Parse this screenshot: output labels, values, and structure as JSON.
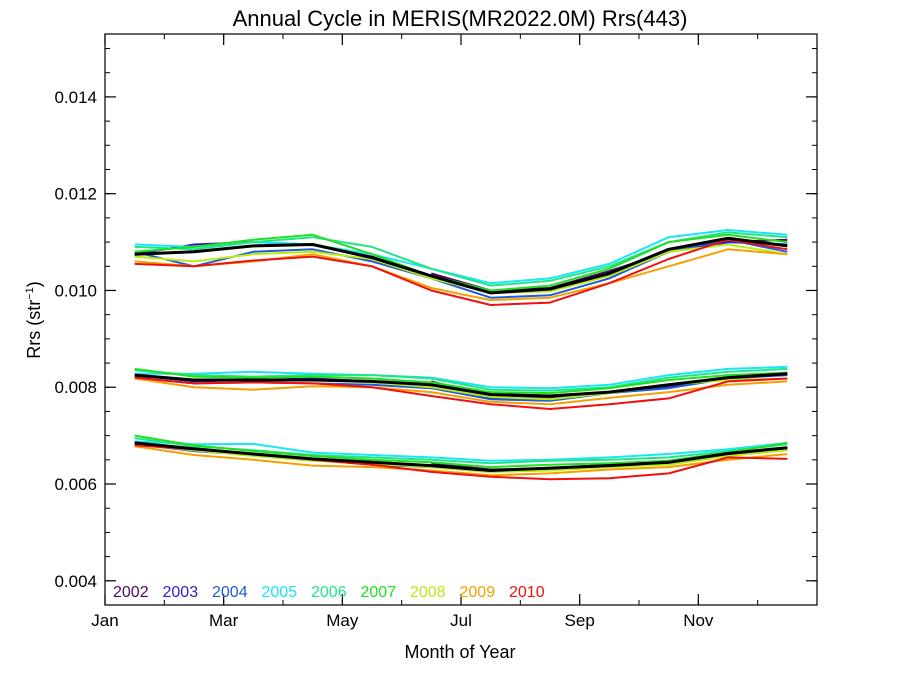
{
  "chart_data": {
    "type": "line",
    "title": "Annual Cycle in MERIS(MR2022.0M) Rrs(443)",
    "xlabel": "Month of Year",
    "ylabel_main": "Rrs (str",
    "ylabel_sup": "−1",
    "ylabel_tail": ")",
    "xlim": [
      1,
      13
    ],
    "ylim": [
      0.0035,
      0.0153
    ],
    "x_ticks": [
      {
        "value": 1,
        "label": "Jan"
      },
      {
        "value": 3,
        "label": "Mar"
      },
      {
        "value": 5,
        "label": "May"
      },
      {
        "value": 7,
        "label": "Jul"
      },
      {
        "value": 9,
        "label": "Sep"
      },
      {
        "value": 11,
        "label": "Nov"
      }
    ],
    "y_ticks": [
      {
        "value": 0.004,
        "label": "0.004"
      },
      {
        "value": 0.006,
        "label": "0.006"
      },
      {
        "value": 0.008,
        "label": "0.008"
      },
      {
        "value": 0.01,
        "label": "0.010"
      },
      {
        "value": 0.012,
        "label": "0.012"
      },
      {
        "value": 0.014,
        "label": "0.014"
      }
    ],
    "grid": false,
    "legend_position": "bottom-left",
    "x": [
      1.5,
      2.5,
      3.5,
      4.5,
      5.5,
      6.5,
      7.5,
      8.5,
      9.5,
      10.5,
      11.5,
      12.5
    ],
    "series": [
      {
        "name": "2002",
        "color": "#4b0a5e",
        "groups": [
          {
            "x0": 6.5,
            "values": [
              0.01035,
              0.01,
              0.01005,
              0.0104,
              0.0108,
              0.011,
              0.01105
            ]
          },
          {
            "x0": 6.5,
            "values": [
              0.00812,
              0.0078,
              0.00778,
              0.0079,
              0.00805,
              0.0082,
              0.0083
            ]
          },
          {
            "x0": 6.5,
            "values": [
              0.00643,
              0.0063,
              0.00633,
              0.0064,
              0.00648,
              0.00665,
              0.00675
            ]
          }
        ]
      },
      {
        "name": "2003",
        "color": "#2e1ec8",
        "groups": [
          {
            "x0": 1.5,
            "values": [
              0.01075,
              0.01095,
              0.011,
              0.01095,
              0.0107,
              0.0103,
              0.00995,
              0.01,
              0.0103,
              0.0108,
              0.011,
              0.01095
            ]
          },
          {
            "x0": 1.5,
            "values": [
              0.00825,
              0.00812,
              0.00815,
              0.00818,
              0.00812,
              0.008,
              0.00778,
              0.00775,
              0.0079,
              0.008,
              0.00818,
              0.00828
            ]
          },
          {
            "x0": 1.5,
            "values": [
              0.00685,
              0.00672,
              0.00662,
              0.00652,
              0.00645,
              0.00638,
              0.00628,
              0.00633,
              0.0064,
              0.00645,
              0.00663,
              0.00675
            ]
          }
        ]
      },
      {
        "name": "2004",
        "color": "#1f5bdb",
        "groups": [
          {
            "x0": 1.5,
            "values": [
              0.0108,
              0.0105,
              0.0108,
              0.01085,
              0.0106,
              0.01025,
              0.00985,
              0.0099,
              0.01025,
              0.0108,
              0.01105,
              0.0108
            ]
          },
          {
            "x0": 1.5,
            "values": [
              0.0082,
              0.00808,
              0.0081,
              0.00808,
              0.00805,
              0.00798,
              0.00775,
              0.00772,
              0.00788,
              0.00798,
              0.00818,
              0.00825
            ]
          },
          {
            "x0": 1.5,
            "values": [
              0.00683,
              0.00668,
              0.0066,
              0.0065,
              0.0064,
              0.00635,
              0.00625,
              0.0063,
              0.00638,
              0.00643,
              0.0066,
              0.00673
            ]
          }
        ]
      },
      {
        "name": "2005",
        "color": "#19e6f2",
        "groups": [
          {
            "x0": 1.5,
            "values": [
              0.01095,
              0.0109,
              0.011,
              0.01095,
              0.01075,
              0.01045,
              0.01015,
              0.01025,
              0.01055,
              0.0111,
              0.01125,
              0.01115
            ]
          },
          {
            "x0": 1.5,
            "values": [
              0.00828,
              0.00828,
              0.00832,
              0.00828,
              0.00825,
              0.0082,
              0.008,
              0.00798,
              0.00805,
              0.00825,
              0.00838,
              0.00842
            ]
          },
          {
            "x0": 1.5,
            "values": [
              0.00688,
              0.00682,
              0.00683,
              0.00665,
              0.0066,
              0.00655,
              0.00648,
              0.0065,
              0.00655,
              0.00662,
              0.00672,
              0.00685
            ]
          }
        ]
      },
      {
        "name": "2006",
        "color": "#22e58a",
        "groups": [
          {
            "x0": 1.5,
            "values": [
              0.0109,
              0.01085,
              0.011,
              0.0111,
              0.0109,
              0.01045,
              0.0101,
              0.0102,
              0.0105,
              0.011,
              0.0112,
              0.0111
            ]
          },
          {
            "x0": 1.5,
            "values": [
              0.00835,
              0.00825,
              0.00822,
              0.00825,
              0.00825,
              0.00818,
              0.00795,
              0.00793,
              0.008,
              0.0082,
              0.00832,
              0.00838
            ]
          },
          {
            "x0": 1.5,
            "values": [
              0.00695,
              0.00678,
              0.0067,
              0.0066,
              0.00655,
              0.0065,
              0.00643,
              0.00648,
              0.0065,
              0.00655,
              0.00668,
              0.00682
            ]
          }
        ]
      },
      {
        "name": "2007",
        "color": "#21e021",
        "groups": [
          {
            "x0": 1.5,
            "values": [
              0.0108,
              0.0109,
              0.01105,
              0.01115,
              0.01075,
              0.0103,
              0.01,
              0.0101,
              0.01045,
              0.011,
              0.01115,
              0.011
            ]
          },
          {
            "x0": 1.5,
            "values": [
              0.00838,
              0.00822,
              0.0082,
              0.00822,
              0.00818,
              0.0081,
              0.0079,
              0.00788,
              0.00798,
              0.00815,
              0.00825,
              0.0083
            ]
          },
          {
            "x0": 1.5,
            "values": [
              0.007,
              0.0068,
              0.00668,
              0.00658,
              0.0065,
              0.00645,
              0.00635,
              0.0064,
              0.00643,
              0.00648,
              0.00665,
              0.00685
            ]
          }
        ]
      },
      {
        "name": "2008",
        "color": "#b8ec12",
        "groups": [
          {
            "x0": 1.5,
            "values": [
              0.0107,
              0.0106,
              0.01075,
              0.0108,
              0.01065,
              0.01025,
              0.00995,
              0.00998,
              0.0103,
              0.0108,
              0.01095,
              0.01075
            ]
          },
          {
            "x0": 1.5,
            "values": [
              0.00825,
              0.00815,
              0.00812,
              0.00815,
              0.0081,
              0.008,
              0.0078,
              0.00775,
              0.00788,
              0.00805,
              0.00815,
              0.00818
            ]
          },
          {
            "x0": 1.5,
            "values": [
              0.00683,
              0.0067,
              0.00658,
              0.00648,
              0.00642,
              0.00635,
              0.00625,
              0.00628,
              0.00635,
              0.0064,
              0.00658,
              0.0067
            ]
          }
        ]
      },
      {
        "name": "2009",
        "color": "#f5a000",
        "groups": [
          {
            "x0": 1.5,
            "values": [
              0.0106,
              0.0105,
              0.0106,
              0.01075,
              0.0105,
              0.01005,
              0.0098,
              0.00985,
              0.01015,
              0.0105,
              0.01085,
              0.01075
            ]
          },
          {
            "x0": 1.5,
            "values": [
              0.00818,
              0.008,
              0.00795,
              0.00802,
              0.008,
              0.0079,
              0.0077,
              0.00765,
              0.00778,
              0.0079,
              0.00805,
              0.00812
            ]
          },
          {
            "x0": 1.5,
            "values": [
              0.00678,
              0.0066,
              0.0065,
              0.00638,
              0.00635,
              0.00628,
              0.00618,
              0.00622,
              0.0063,
              0.00635,
              0.0065,
              0.00662
            ]
          }
        ]
      },
      {
        "name": "2010",
        "color": "#f01010",
        "groups": [
          {
            "x0": 1.5,
            "values": [
              0.01055,
              0.0105,
              0.01062,
              0.0107,
              0.0105,
              0.01,
              0.0097,
              0.00975,
              0.01015,
              0.01065,
              0.01105,
              0.01085
            ]
          },
          {
            "x0": 1.5,
            "values": [
              0.0082,
              0.00808,
              0.0081,
              0.00808,
              0.008,
              0.00782,
              0.00765,
              0.00755,
              0.00765,
              0.00777,
              0.00812,
              0.00818
            ]
          },
          {
            "x0": 1.5,
            "values": [
              0.0068,
              0.00672,
              0.00662,
              0.0065,
              0.0064,
              0.00625,
              0.00615,
              0.0061,
              0.00612,
              0.00622,
              0.00655,
              0.00652
            ]
          }
        ]
      }
    ],
    "mean_series": {
      "color": "#000000",
      "groups": [
        {
          "x0": 1.5,
          "values": [
            0.01075,
            0.0108,
            0.01092,
            0.01095,
            0.01068,
            0.0103,
            0.00995,
            0.01003,
            0.01035,
            0.01085,
            0.01108,
            0.01092
          ]
        },
        {
          "x0": 1.5,
          "values": [
            0.00825,
            0.00815,
            0.00815,
            0.00815,
            0.00812,
            0.00805,
            0.00785,
            0.00782,
            0.0079,
            0.00805,
            0.0082,
            0.00828
          ]
        },
        {
          "x0": 1.5,
          "values": [
            0.00685,
            0.00673,
            0.00662,
            0.00652,
            0.00645,
            0.00638,
            0.00628,
            0.00633,
            0.00638,
            0.00645,
            0.00663,
            0.00675
          ]
        }
      ]
    }
  }
}
